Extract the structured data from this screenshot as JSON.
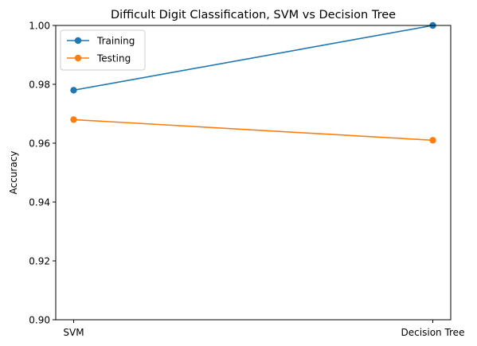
{
  "chart_data": {
    "type": "line",
    "title": "Difficult Digit Classification, SVM vs Decision Tree",
    "xlabel": "",
    "ylabel": "Accuracy",
    "categories": [
      "SVM",
      "Decision Tree"
    ],
    "ylim": [
      0.9,
      1.0
    ],
    "yticks": [
      0.9,
      0.92,
      0.94,
      0.96,
      0.98,
      1.0
    ],
    "ytick_labels": [
      "0.90",
      "0.92",
      "0.94",
      "0.96",
      "0.98",
      "1.00"
    ],
    "grid": false,
    "legend_position": "top-left",
    "series": [
      {
        "name": "Training",
        "color": "#1f77b4",
        "marker": "circle",
        "values": [
          0.978,
          1.0
        ]
      },
      {
        "name": "Testing",
        "color": "#ff7f0e",
        "marker": "circle",
        "values": [
          0.968,
          0.961
        ]
      }
    ]
  }
}
